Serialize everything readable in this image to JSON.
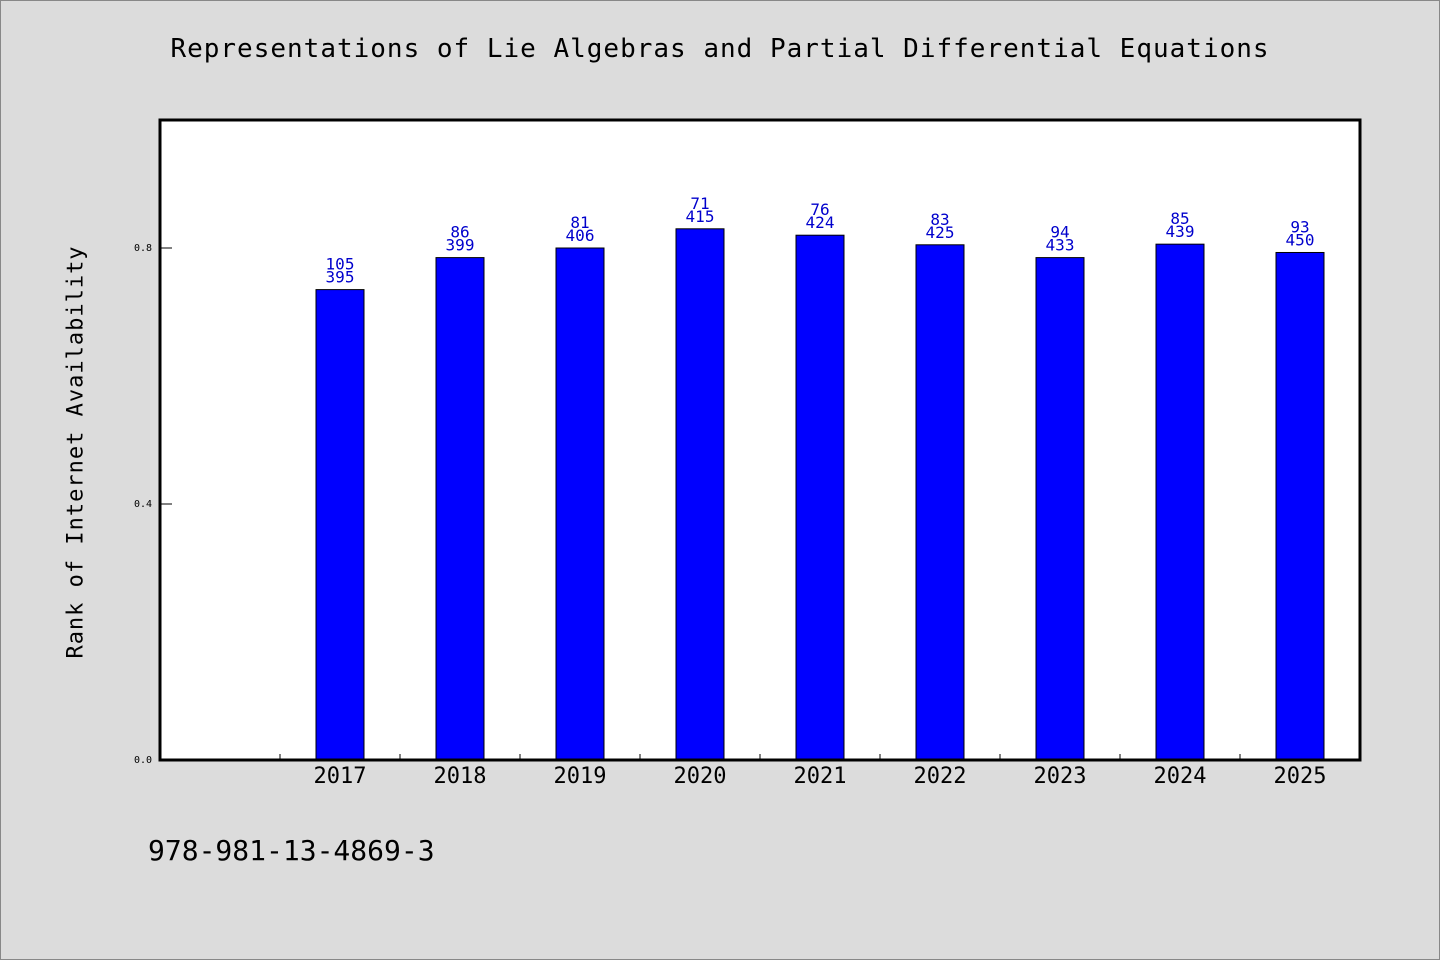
{
  "chart_data": {
    "type": "bar",
    "title": "Representations of Lie Algebras and Partial Differential Equations",
    "ylabel": "Rank of Internet Availability",
    "xlabel": "",
    "categories": [
      "2017",
      "2018",
      "2019",
      "2020",
      "2021",
      "2022",
      "2023",
      "2024",
      "2025"
    ],
    "values": [
      0.735,
      0.785,
      0.8,
      0.83,
      0.82,
      0.805,
      0.785,
      0.806,
      0.793
    ],
    "label_top": [
      "105",
      "86",
      "81",
      "71",
      "76",
      "83",
      "94",
      "85",
      "93"
    ],
    "label_bottom": [
      "395",
      "399",
      "406",
      "415",
      "424",
      "425",
      "433",
      "439",
      "450"
    ],
    "ylim": [
      0,
      1.0
    ],
    "yticks": [
      0.0,
      0.4,
      0.8
    ],
    "ytick_labels": [
      "0.0",
      "0.4",
      "0.8"
    ],
    "grid": false,
    "legend": "none",
    "colors": {
      "bar": "#0000ff",
      "bar_edge": "#000000",
      "label": "#0000cc",
      "background": "#dcdcdc",
      "plot_bg": "#ffffff"
    }
  },
  "footer": {
    "isbn": "978-981-13-4869-3"
  }
}
